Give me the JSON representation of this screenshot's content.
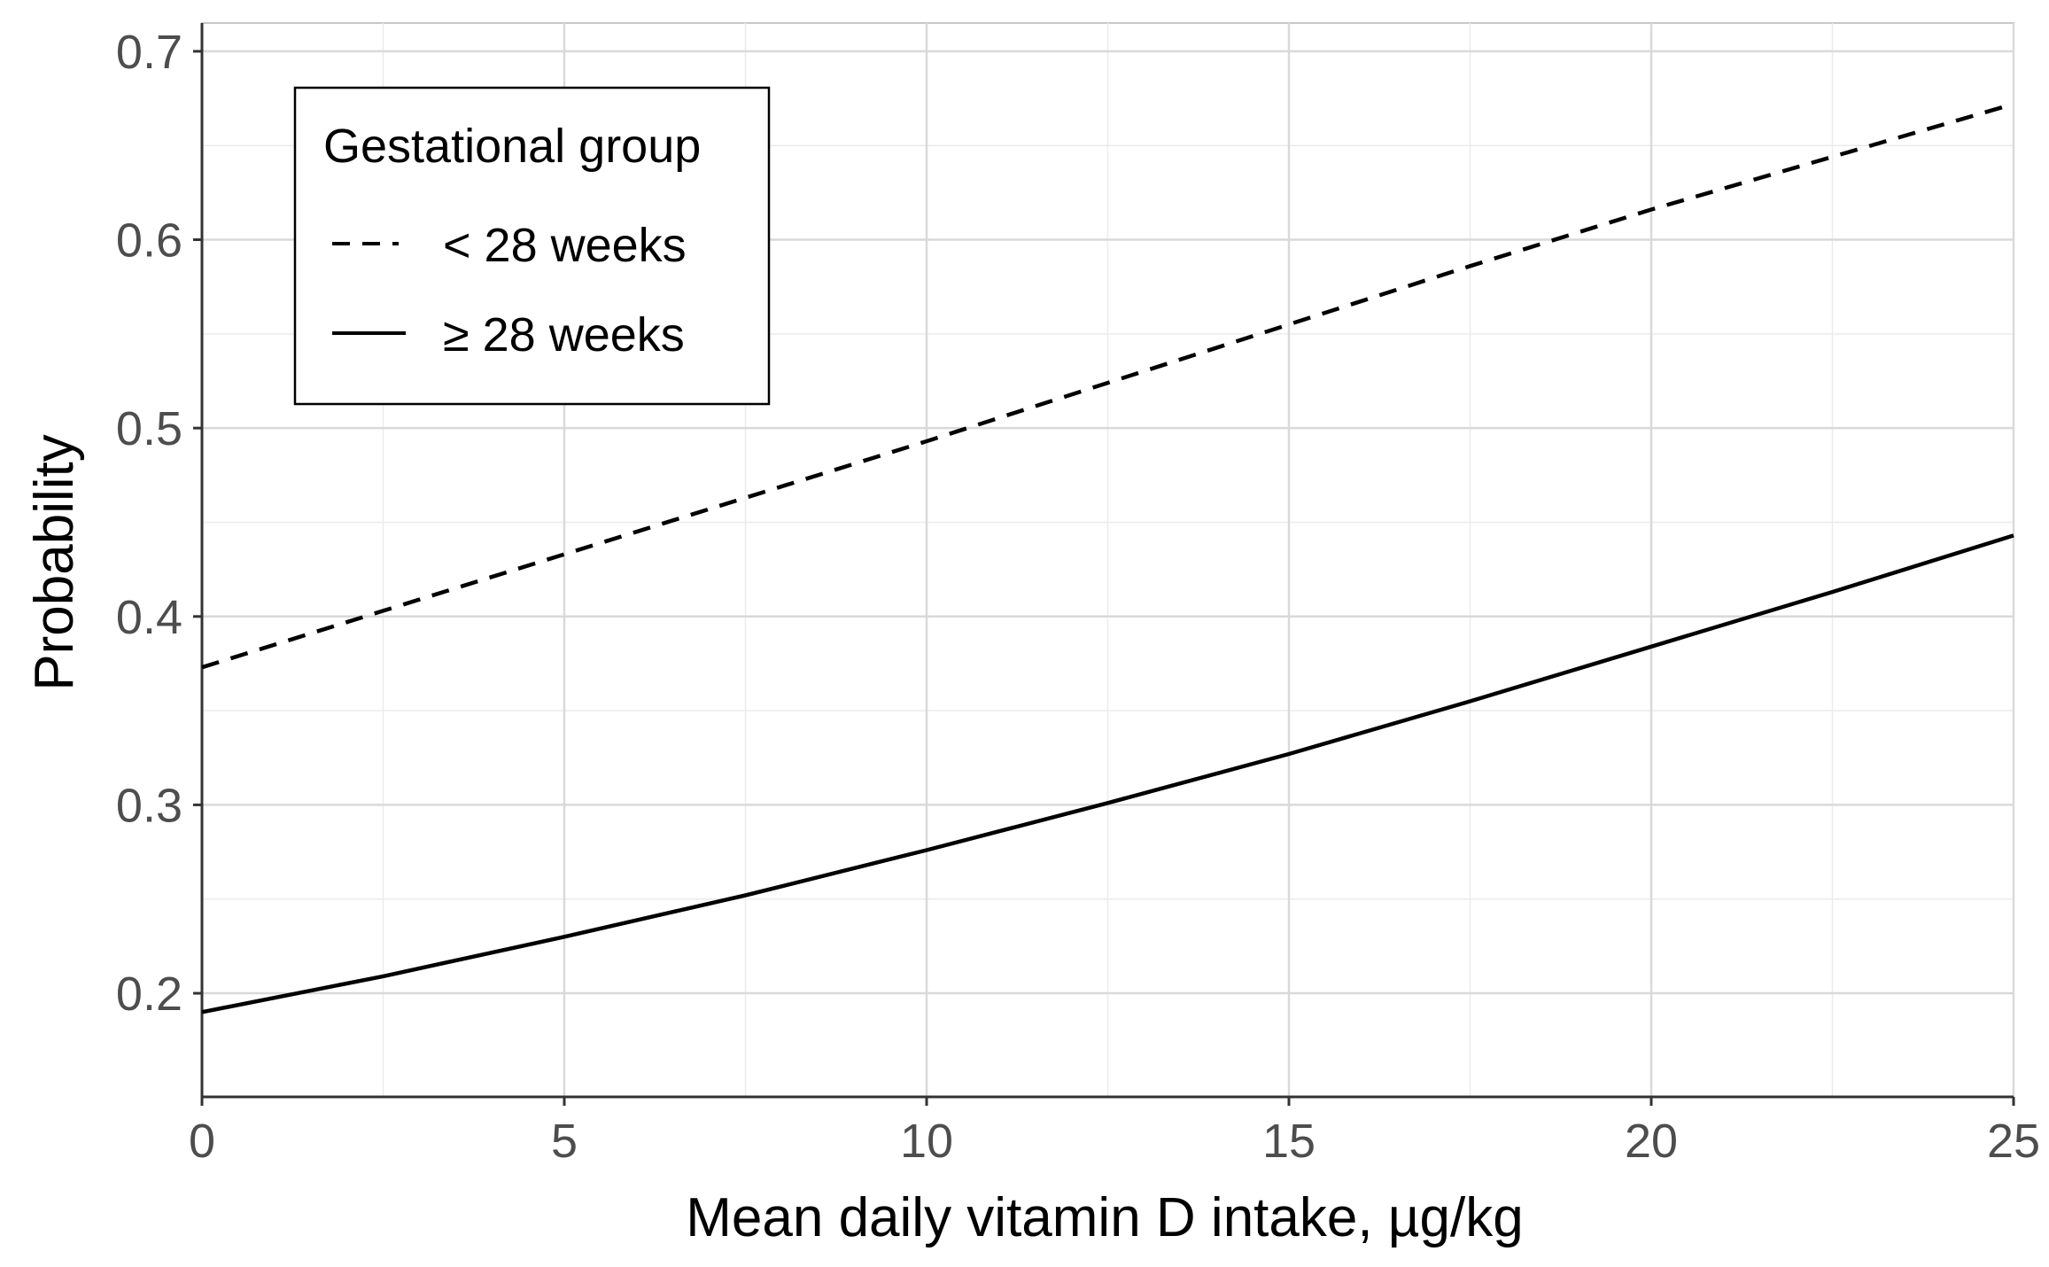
{
  "chart_data": {
    "type": "line",
    "title": "",
    "xlabel": "Mean daily vitamin D intake, µg/kg",
    "ylabel": "Probability",
    "xlim": [
      0,
      25
    ],
    "ylim": [
      0.145,
      0.715
    ],
    "x_ticks": [
      0,
      5,
      10,
      15,
      20,
      25
    ],
    "x_tick_labels": [
      "0",
      "5",
      "10",
      "15",
      "20",
      "25"
    ],
    "y_ticks": [
      0.2,
      0.3,
      0.4,
      0.5,
      0.6,
      0.7
    ],
    "y_tick_labels": [
      "0.2",
      "0.3",
      "0.4",
      "0.5",
      "0.6",
      "0.7"
    ],
    "grid": true,
    "legend": {
      "title": "Gestational group",
      "position": "top-left"
    },
    "x": [
      0,
      2.5,
      5,
      7.5,
      10,
      12.5,
      15,
      17.5,
      20,
      22.5,
      25
    ],
    "series": [
      {
        "name": "< 28 weeks",
        "line_style": "dashed",
        "color": "#000000",
        "values": [
          0.373,
          0.403,
          0.433,
          0.463,
          0.493,
          0.524,
          0.555,
          0.586,
          0.616,
          0.644,
          0.672
        ]
      },
      {
        "name": "≥ 28 weeks",
        "line_style": "solid",
        "color": "#000000",
        "values": [
          0.19,
          0.209,
          0.23,
          0.252,
          0.276,
          0.301,
          0.327,
          0.355,
          0.384,
          0.413,
          0.443
        ]
      }
    ]
  }
}
